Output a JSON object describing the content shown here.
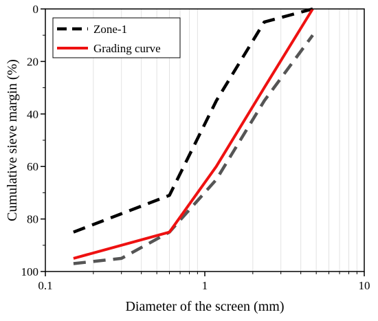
{
  "chart_data": {
    "type": "line",
    "title": "",
    "xlabel": "Diameter of the screen (mm)",
    "ylabel": "Cumulative sieve margin (%)",
    "x_scale": "log",
    "xlim": [
      0.1,
      10
    ],
    "ylim": [
      0,
      100
    ],
    "y_inverted": true,
    "x_ticks": [
      0.1,
      1,
      10
    ],
    "x_tick_labels": [
      "0.1",
      "1",
      "10"
    ],
    "y_ticks": [
      0,
      20,
      40,
      60,
      80,
      100
    ],
    "y_tick_labels": [
      "0",
      "20",
      "40",
      "60",
      "80",
      "100"
    ],
    "grid": "vertical minor lines on log x-axis",
    "legend_position": "top-left",
    "legend_entries": [
      "Zone-1",
      "Grading curve"
    ],
    "series": [
      {
        "name": "Zone-1",
        "style": "dashed",
        "color": "#000000",
        "x": [
          0.15,
          0.6,
          1.18,
          2.36,
          4.75
        ],
        "y": [
          85,
          71,
          35,
          5,
          0
        ]
      },
      {
        "name": "Zone-1",
        "style": "dashed",
        "color": "#555555",
        "x": [
          0.15,
          0.3,
          0.6,
          1.18,
          2.36,
          4.75
        ],
        "y": [
          97,
          95,
          85,
          65,
          35,
          10
        ]
      },
      {
        "name": "Grading curve",
        "style": "solid",
        "color": "#ee1111",
        "x": [
          0.15,
          0.6,
          1.18,
          2.36,
          4.75
        ],
        "y": [
          95,
          85,
          60,
          30,
          0
        ]
      }
    ]
  }
}
